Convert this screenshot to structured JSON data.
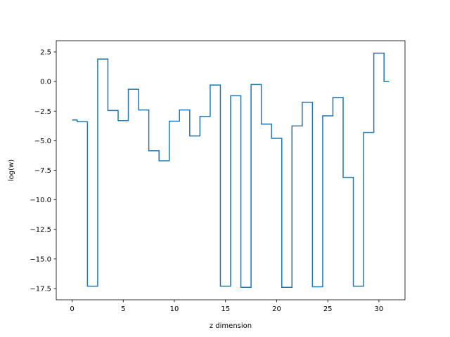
{
  "chart_data": {
    "type": "line",
    "drawstyle": "steps-mid",
    "title": "",
    "xlabel": "z dimension",
    "ylabel": "log(w)",
    "xlim": [
      -1.55,
      32.55
    ],
    "ylim": [
      -18.45,
      3.45
    ],
    "xticks": [
      0,
      5,
      10,
      15,
      20,
      25,
      30
    ],
    "yticks": [
      2.5,
      0.0,
      -2.5,
      -5.0,
      -7.5,
      -10.0,
      -12.5,
      -15.0,
      -17.5
    ],
    "xtick_labels": [
      "0",
      "5",
      "10",
      "15",
      "20",
      "25",
      "30"
    ],
    "ytick_labels": [
      "2.5",
      "0.0",
      "−2.5",
      "−5.0",
      "−7.5",
      "−10.0",
      "−12.5",
      "−15.0",
      "−17.5"
    ],
    "grid": false,
    "series": [
      {
        "color": "#1f77b4",
        "x": [
          0,
          1,
          2,
          3,
          4,
          5,
          6,
          7,
          8,
          9,
          10,
          11,
          12,
          13,
          14,
          15,
          16,
          17,
          18,
          19,
          20,
          21,
          22,
          23,
          24,
          25,
          26,
          27,
          28,
          29,
          30,
          31
        ],
        "y": [
          -3.25,
          -3.4,
          -17.3,
          1.9,
          -2.45,
          -3.3,
          -0.65,
          -2.4,
          -5.85,
          -6.7,
          -3.35,
          -2.4,
          -4.6,
          -2.95,
          -0.3,
          -17.3,
          -1.2,
          -17.4,
          -0.25,
          -3.6,
          -4.8,
          -17.4,
          -3.75,
          -1.75,
          -17.35,
          -2.9,
          -1.35,
          -8.1,
          -17.3,
          -4.3,
          2.4,
          0.0
        ]
      }
    ]
  }
}
